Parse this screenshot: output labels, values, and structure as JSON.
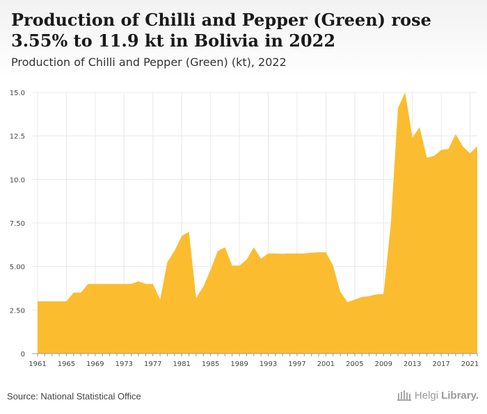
{
  "header": {
    "title": "Production of Chilli and Pepper (Green) rose 3.55% to 11.9 kt in Bolivia in 2022",
    "subtitle": "Production of Chilli and Pepper (Green) (kt), 2022"
  },
  "footer": {
    "source": "Source: National Statistical Office",
    "brand_light": "Helgi",
    "brand_bold": "Library."
  },
  "colors": {
    "area": "#fbbd2f",
    "grid": "#e8e8e8",
    "axis_text": "#444444"
  },
  "chart_data": {
    "type": "area",
    "x": [
      1961,
      1962,
      1963,
      1964,
      1965,
      1966,
      1967,
      1968,
      1969,
      1970,
      1971,
      1972,
      1973,
      1974,
      1975,
      1976,
      1977,
      1978,
      1979,
      1980,
      1981,
      1982,
      1983,
      1984,
      1985,
      1986,
      1987,
      1988,
      1989,
      1990,
      1991,
      1992,
      1993,
      1994,
      1995,
      1996,
      1997,
      1998,
      1999,
      2000,
      2001,
      2002,
      2003,
      2004,
      2005,
      2006,
      2007,
      2008,
      2009,
      2010,
      2011,
      2012,
      2013,
      2014,
      2015,
      2016,
      2017,
      2018,
      2019,
      2020,
      2021,
      2022
    ],
    "values": [
      3.0,
      3.0,
      3.0,
      3.0,
      3.0,
      3.5,
      3.5,
      4.0,
      4.0,
      4.0,
      4.0,
      4.0,
      4.0,
      4.0,
      4.15,
      4.0,
      4.0,
      3.1,
      5.25,
      5.9,
      6.75,
      7.0,
      3.2,
      3.85,
      4.8,
      5.9,
      6.1,
      5.05,
      5.05,
      5.4,
      6.1,
      5.45,
      5.75,
      5.75,
      5.73,
      5.75,
      5.75,
      5.75,
      5.8,
      5.82,
      5.82,
      5.05,
      3.55,
      2.95,
      3.1,
      3.25,
      3.3,
      3.4,
      3.42,
      7.4,
      14.1,
      15.0,
      12.4,
      13.0,
      11.25,
      11.35,
      11.7,
      11.75,
      12.6,
      11.9,
      11.5,
      11.9
    ],
    "ylim": [
      0,
      15
    ],
    "yticks": [
      0,
      2.5,
      5.0,
      7.5,
      10.0,
      12.5,
      15.0
    ],
    "ytick_labels": [
      "0",
      "2.50",
      "5.00",
      "7.50",
      "10.0",
      "12.5",
      "15.0"
    ],
    "xticks": [
      1961,
      1965,
      1969,
      1973,
      1977,
      1981,
      1985,
      1989,
      1993,
      1997,
      2001,
      2005,
      2009,
      2013,
      2017,
      2021
    ],
    "grid": true
  }
}
